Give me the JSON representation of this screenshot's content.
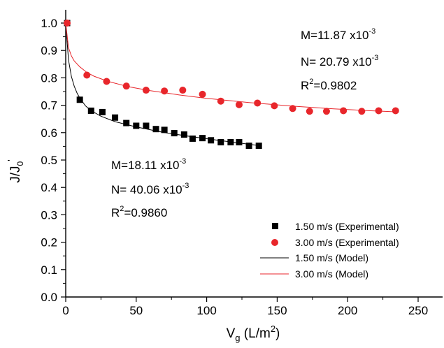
{
  "chart_data": {
    "type": "scatter",
    "xlabel": {
      "main": "V",
      "sub": "g",
      "rest": " (L/m",
      "sup": "2",
      "end": ")"
    },
    "ylabel": {
      "main": "J/J",
      "sub": "0",
      "sup": "'"
    },
    "xlim": [
      0,
      275
    ],
    "ylim": [
      0.0,
      1.05
    ],
    "xticks": [
      0,
      50,
      100,
      150,
      200,
      250
    ],
    "xtick_labels": [
      "0",
      "50",
      "100",
      "150",
      "200",
      "250"
    ],
    "yticks": [
      0.0,
      0.1,
      0.2,
      0.3,
      0.4,
      0.5,
      0.6,
      0.7,
      0.8,
      0.9,
      1.0
    ],
    "ytick_labels": [
      "0.0",
      "0.1",
      "0.2",
      "0.3",
      "0.4",
      "0.5",
      "0.6",
      "0.7",
      "0.8",
      "0.9",
      "1.0"
    ],
    "grid": false,
    "legend_position": "bottom-right",
    "series": [
      {
        "name": "1.50 m/s (Experimental)",
        "kind": "scatter",
        "marker": "square",
        "color": "#000000",
        "x": [
          1,
          10,
          18,
          26,
          35,
          43,
          50,
          57,
          64,
          70,
          77,
          84,
          90,
          97,
          103,
          110,
          117,
          123,
          130,
          137
        ],
        "y": [
          1.0,
          0.72,
          0.68,
          0.675,
          0.655,
          0.635,
          0.625,
          0.625,
          0.613,
          0.61,
          0.598,
          0.593,
          0.578,
          0.58,
          0.572,
          0.565,
          0.565,
          0.565,
          0.552,
          0.552
        ]
      },
      {
        "name": "3.00 m/s (Experimental)",
        "kind": "scatter",
        "marker": "circle",
        "color": "#e8262b",
        "x": [
          1,
          15,
          29,
          43,
          57,
          70,
          83,
          97,
          110,
          123,
          136,
          148,
          161,
          173,
          185,
          197,
          210,
          222,
          234
        ],
        "y": [
          1.0,
          0.81,
          0.787,
          0.77,
          0.755,
          0.752,
          0.755,
          0.74,
          0.715,
          0.702,
          0.708,
          0.698,
          0.688,
          0.678,
          0.678,
          0.68,
          0.678,
          0.68,
          0.68
        ]
      },
      {
        "name": "1.50 m/s (Model)",
        "kind": "line",
        "color": "#000000",
        "x": [
          0,
          2,
          4,
          6,
          8,
          10,
          14,
          18,
          25,
          35,
          50,
          70,
          90,
          110,
          137
        ],
        "y": [
          1.0,
          0.865,
          0.805,
          0.77,
          0.745,
          0.726,
          0.698,
          0.68,
          0.66,
          0.64,
          0.621,
          0.6,
          0.585,
          0.571,
          0.553
        ]
      },
      {
        "name": "3.00 m/s (Model)",
        "kind": "line",
        "color": "#e8262b",
        "x": [
          0,
          2,
          4,
          6,
          10,
          15,
          20,
          30,
          45,
          60,
          80,
          100,
          130,
          160,
          190,
          215,
          234
        ],
        "y": [
          1.0,
          0.91,
          0.88,
          0.862,
          0.84,
          0.82,
          0.806,
          0.787,
          0.767,
          0.753,
          0.738,
          0.725,
          0.71,
          0.697,
          0.687,
          0.68,
          0.676
        ]
      }
    ],
    "annotations": [
      {
        "series": "3.00 m/s",
        "M": {
          "prefix": "M=11.87 x10",
          "sup": "-3"
        },
        "N": {
          "prefix": "N= 20.79 x10",
          "sup": "-3"
        },
        "R2": {
          "prefix": "R",
          "sup": "2",
          "suffix": "=0.9802"
        }
      },
      {
        "series": "1.50 m/s",
        "M": {
          "prefix": "M=18.11 x10",
          "sup": "-3"
        },
        "N": {
          "prefix": "N= 40.06 x10",
          "sup": "-3"
        },
        "R2": {
          "prefix": "R",
          "sup": "2",
          "suffix": "=0.9860"
        }
      }
    ]
  }
}
